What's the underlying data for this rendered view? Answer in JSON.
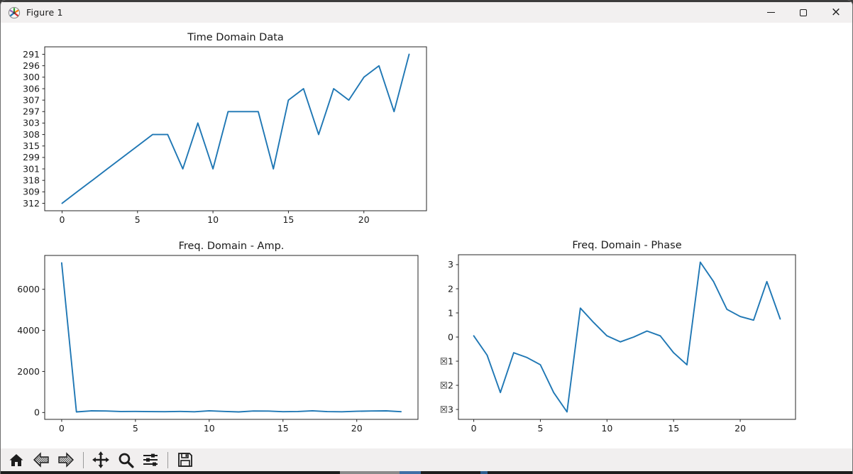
{
  "window": {
    "title": "Figure 1",
    "controls": {
      "minimize_label": "minimize",
      "maximize_label": "maximize",
      "close_label": "close",
      "close_glyph": "×"
    }
  },
  "toolbar": {
    "items": [
      {
        "name": "home",
        "label": "Home"
      },
      {
        "name": "back",
        "label": "Back"
      },
      {
        "name": "forward",
        "label": "Forward"
      },
      {
        "name": "separator",
        "label": ""
      },
      {
        "name": "pan",
        "label": "Pan"
      },
      {
        "name": "zoom",
        "label": "Zoom"
      },
      {
        "name": "subplots",
        "label": "Configure subplots"
      },
      {
        "name": "separator",
        "label": ""
      },
      {
        "name": "save",
        "label": "Save"
      }
    ]
  },
  "chart_data": [
    {
      "type": "line",
      "title": "Time Domain Data",
      "line_color": "#1f77b4",
      "x": [
        0,
        1,
        2,
        3,
        4,
        5,
        6,
        7,
        8,
        9,
        10,
        11,
        12,
        13,
        14,
        15,
        16,
        17,
        18,
        19,
        20,
        21,
        22,
        23
      ],
      "values": [
        "312",
        "309",
        "318",
        "301",
        "299",
        "315",
        "308",
        "308",
        "301",
        "303",
        "301",
        "297",
        "297",
        "297",
        "301",
        "307",
        "306",
        "308",
        "306",
        "307",
        "300",
        "296",
        "297",
        "291"
      ],
      "y_axis_type": "categorical",
      "y_categories_bottom_to_top": [
        "312",
        "309",
        "318",
        "301",
        "299",
        "315",
        "308",
        "303",
        "297",
        "307",
        "306",
        "300",
        "296",
        "291"
      ],
      "ytick_labels_top_to_bottom": [
        "291",
        "296",
        "300",
        "306",
        "307",
        "297",
        "303",
        "308",
        "315",
        "299",
        "301",
        "318",
        "309",
        "312"
      ],
      "xticks": [
        0,
        5,
        10,
        15,
        20
      ],
      "xlim": [
        -1.15,
        24.15
      ],
      "grid": false,
      "legend": "none"
    },
    {
      "type": "line",
      "title": "Freq. Domain - Amp.",
      "line_color": "#1f77b4",
      "x": [
        0,
        1,
        2,
        3,
        4,
        5,
        6,
        7,
        8,
        9,
        10,
        11,
        12,
        13,
        14,
        15,
        16,
        17,
        18,
        19,
        20,
        21,
        22,
        23
      ],
      "values": [
        7285,
        30,
        80,
        75,
        50,
        55,
        45,
        40,
        55,
        35,
        85,
        55,
        30,
        75,
        70,
        40,
        50,
        85,
        45,
        35,
        60,
        75,
        80,
        40
      ],
      "xticks": [
        0,
        5,
        10,
        15,
        20
      ],
      "yticks": [
        0,
        2000,
        4000,
        6000
      ],
      "xlim": [
        -1.15,
        24.15
      ],
      "ylim": [
        -333,
        7648
      ],
      "grid": false,
      "legend": "none"
    },
    {
      "type": "line",
      "title": "Freq. Domain - Phase",
      "line_color": "#1f77b4",
      "x": [
        0,
        1,
        2,
        3,
        4,
        5,
        6,
        7,
        8,
        9,
        10,
        11,
        12,
        13,
        14,
        15,
        16,
        17,
        18,
        19,
        20,
        21,
        22,
        23
      ],
      "values": [
        0.05,
        -0.75,
        -2.3,
        -0.65,
        -0.85,
        -1.15,
        -2.3,
        -3.1,
        1.2,
        0.6,
        0.05,
        -0.2,
        0.0,
        0.25,
        0.05,
        -0.65,
        -1.15,
        3.1,
        2.3,
        1.15,
        0.85,
        0.7,
        2.3,
        0.75
      ],
      "xticks": [
        0,
        5,
        10,
        15,
        20
      ],
      "yticks": [
        3,
        2,
        1,
        0,
        -1,
        -2,
        -3
      ],
      "ytick_labels": [
        "3",
        "2",
        "1",
        "0",
        "☒1",
        "☒2",
        "☒3"
      ],
      "xlim": [
        -1.15,
        24.15
      ],
      "ylim": [
        -3.41,
        3.41
      ],
      "grid": false,
      "legend": "none"
    }
  ]
}
